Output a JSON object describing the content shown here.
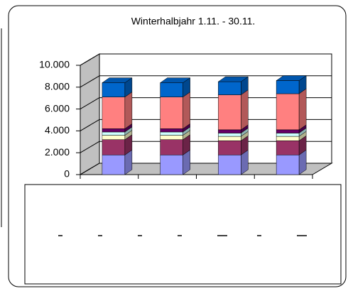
{
  "chart_data": {
    "type": "bar3d_stacked",
    "title": "Winterhalbjahr 1.11. - 30.11.",
    "categories": [
      null,
      null,
      null,
      null
    ],
    "series": [
      {
        "color": "#9999ff",
        "values": [
          1800,
          1800,
          1800,
          1800
        ]
      },
      {
        "color": "#993366",
        "values": [
          1400,
          1400,
          1300,
          1300
        ]
      },
      {
        "color": "#ffffcc",
        "values": [
          400,
          400,
          400,
          400
        ]
      },
      {
        "color": "#ccffff",
        "values": [
          300,
          300,
          300,
          300
        ]
      },
      {
        "color": "#660066",
        "values": [
          300,
          300,
          300,
          300
        ]
      },
      {
        "color": "#ff8080",
        "values": [
          2900,
          2900,
          3200,
          3300
        ]
      },
      {
        "color": "#0066cc",
        "values": [
          1300,
          1300,
          1200,
          1200
        ]
      }
    ],
    "ylim": [
      0,
      10000
    ],
    "yticks": [
      0,
      {
        "value": 2000,
        "label": "2.000"
      },
      {
        "value": 4000,
        "label": "4.000"
      },
      {
        "value": 6000,
        "label": "6.000"
      },
      {
        "value": 8000,
        "label": "8.000"
      },
      {
        "value": 10000,
        "label": "10.000"
      }
    ],
    "grid": true
  }
}
